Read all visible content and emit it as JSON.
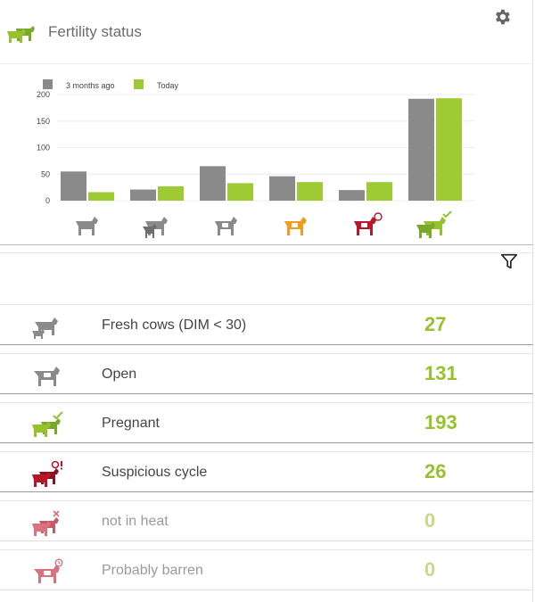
{
  "header": {
    "title": "Fertility status",
    "icon": "cow-pair-icon",
    "settings_icon": "gear-icon"
  },
  "chart_data": {
    "type": "bar",
    "categories": [
      "fresh-cows-icon",
      "cow-pair-icon",
      "open-cow-icon",
      "inseminated-cow-icon",
      "probably-barren-icon",
      "pregnant-icon"
    ],
    "category_colors": [
      "#8a8a8a",
      "#8a8a8a",
      "#8a8a8a",
      "#f29b1d",
      "#b8162a",
      "#96c22d"
    ],
    "series": [
      {
        "name": "3 months ago",
        "color": "#8a8a8a",
        "values": [
          55,
          21,
          65,
          46,
          20,
          192
        ]
      },
      {
        "name": "Today",
        "color": "#9ecb33",
        "values": [
          16,
          27,
          33,
          35,
          35,
          193
        ]
      }
    ],
    "yticks": [
      "200",
      "150",
      "100",
      "50",
      "0"
    ],
    "ylim": [
      0,
      200
    ],
    "grid": true,
    "legend": "top-left"
  },
  "filter_icon": "filter-icon",
  "rows": [
    {
      "label": "Fresh cows (DIM < 30)",
      "value": "27",
      "icon": "fresh-cows-icon",
      "icon_color": "#8a8a8a"
    },
    {
      "label": "Open",
      "value": "131",
      "icon": "open-cow-icon",
      "icon_color": "#8a8a8a"
    },
    {
      "label": "Pregnant",
      "value": "193",
      "icon": "pregnant-icon",
      "icon_color": "#96c22d"
    },
    {
      "label": "Suspicious cycle",
      "value": "26",
      "icon": "suspicious-cycle-icon",
      "icon_color": "#b8162a"
    },
    {
      "label": "not in heat",
      "value": "0",
      "icon": "not-in-heat-icon",
      "icon_color": "#d9717e"
    },
    {
      "label": "Probably barren",
      "value": "0",
      "icon": "probably-barren-icon",
      "icon_color": "#d9717e"
    }
  ],
  "colors": {
    "accent_green": "#96c22d",
    "faded_green": "#c3dc8a",
    "grey": "#8a8a8a",
    "red": "#b8162a",
    "orange": "#f29b1d",
    "pink": "#d9717e"
  }
}
